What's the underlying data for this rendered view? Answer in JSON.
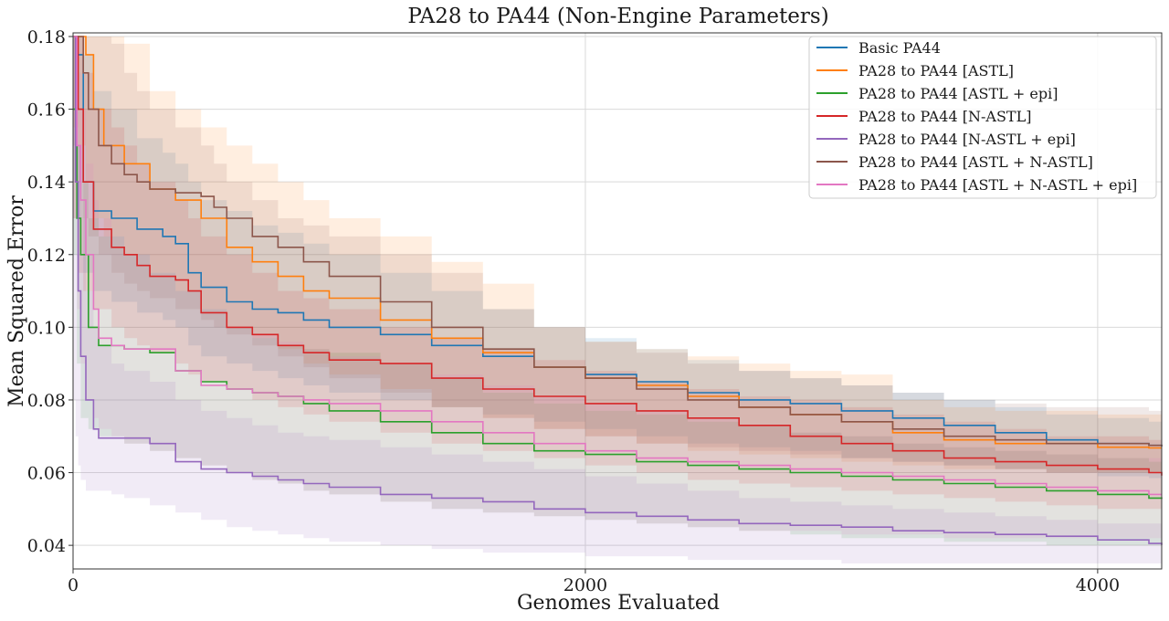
{
  "chart_data": {
    "type": "line",
    "title": "PA28 to PA44 (Non-Engine Parameters)",
    "xlabel": "Genomes Evaluated",
    "ylabel": "Mean Squared Error",
    "xlim": [
      0,
      4250
    ],
    "ylim": [
      0.0335,
      0.181
    ],
    "xticks": [
      0,
      2000,
      4000
    ],
    "xtick_labels": [
      "0",
      "2000",
      "4000"
    ],
    "yticks": [
      0.04,
      0.06,
      0.08,
      0.1,
      0.12,
      0.14,
      0.16,
      0.18
    ],
    "ytick_labels": [
      "0.04",
      "0.06",
      "0.08",
      "0.10",
      "0.12",
      "0.14",
      "0.16",
      "0.18"
    ],
    "grid": true,
    "legend_position": "top-right",
    "series": [
      {
        "name": "Basic PA44",
        "color": "#1f77b4",
        "x": [
          0,
          15,
          40,
          80,
          150,
          250,
          350,
          400,
          450,
          500,
          600,
          700,
          800,
          900,
          1000,
          1200,
          1400,
          1600,
          1800,
          2000,
          2200,
          2400,
          2600,
          2800,
          3000,
          3200,
          3400,
          3600,
          3800,
          4000,
          4200,
          4250
        ],
        "values": [
          0.18,
          0.175,
          0.14,
          0.132,
          0.13,
          0.127,
          0.125,
          0.123,
          0.115,
          0.111,
          0.107,
          0.105,
          0.104,
          0.102,
          0.1,
          0.098,
          0.095,
          0.092,
          0.089,
          0.087,
          0.085,
          0.082,
          0.08,
          0.079,
          0.077,
          0.075,
          0.073,
          0.071,
          0.069,
          0.068,
          0.0675,
          0.0673
        ],
        "band_upper": [
          0.18,
          0.18,
          0.175,
          0.165,
          0.16,
          0.152,
          0.148,
          0.145,
          0.14,
          0.135,
          0.132,
          0.128,
          0.126,
          0.123,
          0.12,
          0.115,
          0.11,
          0.105,
          0.1,
          0.097,
          0.094,
          0.091,
          0.088,
          0.086,
          0.084,
          0.082,
          0.08,
          0.078,
          0.076,
          0.075,
          0.074,
          0.074
        ],
        "band_lower": [
          0.14,
          0.13,
          0.115,
          0.11,
          0.107,
          0.104,
          0.102,
          0.1,
          0.095,
          0.092,
          0.09,
          0.088,
          0.086,
          0.084,
          0.082,
          0.08,
          0.078,
          0.076,
          0.074,
          0.072,
          0.07,
          0.068,
          0.067,
          0.066,
          0.064,
          0.063,
          0.062,
          0.061,
          0.06,
          0.059,
          0.0585,
          0.058
        ]
      },
      {
        "name": "PA28 to PA44 [ASTL]",
        "color": "#ff7f0e",
        "x": [
          0,
          20,
          50,
          80,
          120,
          200,
          300,
          400,
          500,
          600,
          700,
          800,
          900,
          1000,
          1200,
          1400,
          1600,
          1800,
          2000,
          2200,
          2400,
          2600,
          2800,
          3000,
          3200,
          3400,
          3600,
          3800,
          4000,
          4200,
          4250
        ],
        "values": [
          0.18,
          0.18,
          0.175,
          0.16,
          0.15,
          0.145,
          0.138,
          0.135,
          0.13,
          0.122,
          0.118,
          0.114,
          0.11,
          0.108,
          0.102,
          0.097,
          0.093,
          0.089,
          0.086,
          0.084,
          0.081,
          0.078,
          0.076,
          0.074,
          0.071,
          0.069,
          0.068,
          0.068,
          0.067,
          0.0668,
          0.0668
        ],
        "band_upper": [
          0.18,
          0.18,
          0.18,
          0.18,
          0.18,
          0.178,
          0.165,
          0.16,
          0.155,
          0.15,
          0.145,
          0.14,
          0.135,
          0.13,
          0.125,
          0.118,
          0.112,
          0.1,
          0.096,
          0.094,
          0.092,
          0.09,
          0.088,
          0.087,
          0.08,
          0.078,
          0.077,
          0.077,
          0.076,
          0.076,
          0.076
        ],
        "band_lower": [
          0.155,
          0.15,
          0.14,
          0.13,
          0.125,
          0.12,
          0.115,
          0.11,
          0.105,
          0.1,
          0.097,
          0.094,
          0.09,
          0.087,
          0.083,
          0.078,
          0.075,
          0.072,
          0.07,
          0.068,
          0.066,
          0.065,
          0.064,
          0.063,
          0.062,
          0.061,
          0.061,
          0.06,
          0.06,
          0.06,
          0.06
        ]
      },
      {
        "name": "PA28 to PA44 [ASTL + epi]",
        "color": "#2ca02c",
        "x": [
          0,
          15,
          30,
          60,
          100,
          200,
          300,
          400,
          500,
          600,
          700,
          800,
          900,
          1000,
          1200,
          1400,
          1600,
          1800,
          2000,
          2200,
          2400,
          2600,
          2800,
          3000,
          3200,
          3400,
          3600,
          3800,
          4000,
          4200,
          4250
        ],
        "values": [
          0.16,
          0.13,
          0.12,
          0.1,
          0.095,
          0.094,
          0.093,
          0.088,
          0.085,
          0.083,
          0.082,
          0.081,
          0.079,
          0.077,
          0.074,
          0.071,
          0.068,
          0.066,
          0.065,
          0.063,
          0.062,
          0.061,
          0.06,
          0.059,
          0.058,
          0.057,
          0.056,
          0.055,
          0.054,
          0.053,
          0.0528
        ],
        "band_upper": [
          0.18,
          0.15,
          0.14,
          0.13,
          0.125,
          0.12,
          0.115,
          0.11,
          0.105,
          0.1,
          0.097,
          0.095,
          0.094,
          0.093,
          0.09,
          0.086,
          0.082,
          0.079,
          0.077,
          0.076,
          0.074,
          0.073,
          0.071,
          0.07,
          0.068,
          0.067,
          0.066,
          0.065,
          0.064,
          0.063,
          0.063
        ],
        "band_lower": [
          0.12,
          0.09,
          0.075,
          0.072,
          0.07,
          0.068,
          0.066,
          0.064,
          0.062,
          0.06,
          0.058,
          0.057,
          0.055,
          0.054,
          0.052,
          0.05,
          0.049,
          0.048,
          0.047,
          0.046,
          0.045,
          0.044,
          0.043,
          0.042,
          0.042,
          0.041,
          0.041,
          0.04,
          0.04,
          0.04,
          0.04
        ]
      },
      {
        "name": "PA28 to PA44 [N-ASTL]",
        "color": "#d62728",
        "x": [
          0,
          20,
          40,
          80,
          150,
          200,
          250,
          300,
          400,
          450,
          500,
          600,
          700,
          800,
          900,
          1000,
          1200,
          1400,
          1600,
          1800,
          2000,
          2200,
          2400,
          2600,
          2800,
          3000,
          3200,
          3400,
          3600,
          3800,
          4000,
          4200,
          4250
        ],
        "values": [
          0.18,
          0.16,
          0.14,
          0.127,
          0.122,
          0.12,
          0.117,
          0.114,
          0.113,
          0.11,
          0.104,
          0.1,
          0.098,
          0.095,
          0.093,
          0.091,
          0.09,
          0.086,
          0.083,
          0.081,
          0.079,
          0.077,
          0.075,
          0.073,
          0.07,
          0.068,
          0.066,
          0.064,
          0.063,
          0.062,
          0.061,
          0.06,
          0.0592
        ],
        "band_upper": [
          0.18,
          0.18,
          0.17,
          0.16,
          0.155,
          0.15,
          0.145,
          0.14,
          0.135,
          0.13,
          0.125,
          0.12,
          0.115,
          0.11,
          0.108,
          0.105,
          0.1,
          0.097,
          0.094,
          0.091,
          0.088,
          0.085,
          0.083,
          0.081,
          0.08,
          0.078,
          0.076,
          0.074,
          0.072,
          0.07,
          0.07,
          0.069,
          0.069
        ],
        "band_lower": [
          0.13,
          0.115,
          0.11,
          0.105,
          0.1,
          0.097,
          0.095,
          0.093,
          0.09,
          0.087,
          0.085,
          0.083,
          0.08,
          0.078,
          0.076,
          0.074,
          0.071,
          0.068,
          0.066,
          0.064,
          0.062,
          0.06,
          0.058,
          0.057,
          0.056,
          0.055,
          0.054,
          0.053,
          0.052,
          0.051,
          0.05,
          0.05,
          0.05
        ]
      },
      {
        "name": "PA28 to PA44 [N-ASTL + epi]",
        "color": "#9467bd",
        "x": [
          0,
          10,
          20,
          30,
          50,
          80,
          100,
          150,
          200,
          300,
          400,
          500,
          600,
          700,
          800,
          900,
          1000,
          1200,
          1400,
          1600,
          1800,
          2000,
          2200,
          2400,
          2600,
          2800,
          3000,
          3200,
          3400,
          3600,
          3800,
          4000,
          4200,
          4250
        ],
        "values": [
          0.18,
          0.14,
          0.11,
          0.092,
          0.08,
          0.072,
          0.0695,
          0.0695,
          0.0695,
          0.068,
          0.063,
          0.061,
          0.06,
          0.059,
          0.058,
          0.057,
          0.056,
          0.054,
          0.053,
          0.052,
          0.05,
          0.049,
          0.048,
          0.047,
          0.046,
          0.0455,
          0.045,
          0.044,
          0.0435,
          0.043,
          0.0425,
          0.0415,
          0.0405,
          0.0401
        ],
        "band_upper": [
          0.18,
          0.17,
          0.15,
          0.13,
          0.11,
          0.1,
          0.095,
          0.09,
          0.088,
          0.085,
          0.08,
          0.077,
          0.075,
          0.073,
          0.071,
          0.07,
          0.069,
          0.067,
          0.065,
          0.063,
          0.061,
          0.059,
          0.057,
          0.055,
          0.053,
          0.052,
          0.051,
          0.05,
          0.049,
          0.048,
          0.047,
          0.046,
          0.046,
          0.046
        ],
        "band_lower": [
          0.08,
          0.07,
          0.062,
          0.058,
          0.055,
          0.055,
          0.055,
          0.054,
          0.053,
          0.051,
          0.049,
          0.047,
          0.045,
          0.044,
          0.043,
          0.042,
          0.041,
          0.04,
          0.039,
          0.038,
          0.038,
          0.037,
          0.037,
          0.036,
          0.036,
          0.036,
          0.035,
          0.035,
          0.035,
          0.035,
          0.035,
          0.035,
          0.035,
          0.035
        ]
      },
      {
        "name": "PA28 to PA44 [ASTL + N-ASTL]",
        "color": "#8c564b",
        "x": [
          0,
          20,
          40,
          60,
          100,
          150,
          200,
          250,
          300,
          400,
          500,
          550,
          600,
          700,
          800,
          900,
          1000,
          1200,
          1400,
          1600,
          1800,
          2000,
          2200,
          2400,
          2600,
          2800,
          3000,
          3200,
          3400,
          3600,
          3800,
          4000,
          4200,
          4250
        ],
        "values": [
          0.18,
          0.18,
          0.17,
          0.16,
          0.15,
          0.145,
          0.142,
          0.14,
          0.138,
          0.137,
          0.136,
          0.133,
          0.13,
          0.125,
          0.122,
          0.118,
          0.114,
          0.107,
          0.1,
          0.094,
          0.089,
          0.086,
          0.083,
          0.08,
          0.078,
          0.076,
          0.074,
          0.072,
          0.07,
          0.069,
          0.068,
          0.068,
          0.0675,
          0.0672
        ],
        "band_upper": [
          0.18,
          0.18,
          0.18,
          0.18,
          0.18,
          0.178,
          0.17,
          0.165,
          0.16,
          0.155,
          0.15,
          0.145,
          0.14,
          0.135,
          0.13,
          0.128,
          0.125,
          0.12,
          0.115,
          0.105,
          0.1,
          0.096,
          0.093,
          0.09,
          0.088,
          0.086,
          0.084,
          0.082,
          0.08,
          0.079,
          0.078,
          0.078,
          0.077,
          0.077
        ],
        "band_lower": [
          0.15,
          0.14,
          0.13,
          0.125,
          0.12,
          0.115,
          0.112,
          0.11,
          0.108,
          0.105,
          0.102,
          0.1,
          0.098,
          0.095,
          0.092,
          0.089,
          0.086,
          0.082,
          0.078,
          0.075,
          0.072,
          0.07,
          0.068,
          0.067,
          0.066,
          0.065,
          0.064,
          0.063,
          0.062,
          0.061,
          0.06,
          0.06,
          0.06,
          0.06
        ]
      },
      {
        "name": "PA28 to PA44 [ASTL + N-ASTL + epi]",
        "color": "#e377c2",
        "x": [
          0,
          15,
          30,
          50,
          80,
          100,
          150,
          200,
          300,
          400,
          500,
          600,
          700,
          800,
          900,
          1000,
          1200,
          1400,
          1600,
          1800,
          2000,
          2200,
          2400,
          2600,
          2800,
          3000,
          3200,
          3400,
          3600,
          3800,
          4000,
          4200,
          4250
        ],
        "values": [
          0.18,
          0.15,
          0.135,
          0.12,
          0.105,
          0.097,
          0.095,
          0.094,
          0.094,
          0.088,
          0.084,
          0.083,
          0.082,
          0.081,
          0.08,
          0.079,
          0.077,
          0.074,
          0.071,
          0.068,
          0.066,
          0.064,
          0.063,
          0.062,
          0.061,
          0.06,
          0.059,
          0.058,
          0.057,
          0.056,
          0.055,
          0.054,
          0.054
        ],
        "band_upper": [
          0.18,
          0.17,
          0.16,
          0.145,
          0.135,
          0.13,
          0.125,
          0.12,
          0.115,
          0.11,
          0.105,
          0.1,
          0.098,
          0.096,
          0.094,
          0.092,
          0.09,
          0.087,
          0.084,
          0.081,
          0.079,
          0.077,
          0.075,
          0.073,
          0.071,
          0.07,
          0.068,
          0.067,
          0.066,
          0.065,
          0.064,
          0.064,
          0.064
        ],
        "band_lower": [
          0.13,
          0.105,
          0.09,
          0.08,
          0.075,
          0.072,
          0.07,
          0.068,
          0.066,
          0.064,
          0.062,
          0.06,
          0.058,
          0.057,
          0.055,
          0.054,
          0.052,
          0.05,
          0.049,
          0.048,
          0.047,
          0.046,
          0.045,
          0.044,
          0.044,
          0.043,
          0.043,
          0.042,
          0.042,
          0.042,
          0.042,
          0.042,
          0.042
        ]
      }
    ]
  }
}
